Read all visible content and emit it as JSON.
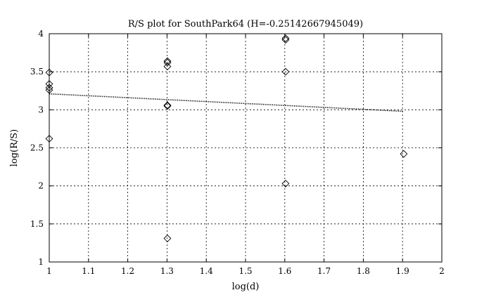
{
  "chart_data": {
    "type": "scatter",
    "title": "R/S plot for SouthPark64 (H=-0.25142667945049)",
    "xlabel": "log(d)",
    "ylabel": "log(R/S)",
    "xlim": [
      1,
      2
    ],
    "ylim": [
      1,
      4
    ],
    "grid": true,
    "x_ticks": [
      1,
      1.1,
      1.2,
      1.3,
      1.4,
      1.5,
      1.6,
      1.7,
      1.8,
      1.9,
      2
    ],
    "x_tick_labels": [
      "1",
      "1.1",
      "1.2",
      "1.3",
      "1.4",
      "1.5",
      "1.6",
      "1.7",
      "1.8",
      "1.9",
      "2"
    ],
    "y_ticks": [
      1,
      1.5,
      2,
      2.5,
      3,
      3.5,
      4
    ],
    "y_tick_labels": [
      "1",
      "1.5",
      "2",
      "2.5",
      "3",
      "3.5",
      "4"
    ],
    "series": [
      {
        "marker": "diamond",
        "color": "#000000",
        "points": [
          {
            "x": 1.0,
            "y": 3.49
          },
          {
            "x": 1.0,
            "y": 3.34
          },
          {
            "x": 1.0,
            "y": 3.29
          },
          {
            "x": 1.0,
            "y": 3.26
          },
          {
            "x": 1.0,
            "y": 2.62
          },
          {
            "x": 1.301,
            "y": 3.64
          },
          {
            "x": 1.301,
            "y": 3.62
          },
          {
            "x": 1.301,
            "y": 3.57
          },
          {
            "x": 1.301,
            "y": 3.06
          },
          {
            "x": 1.301,
            "y": 3.05
          },
          {
            "x": 1.301,
            "y": 1.31
          },
          {
            "x": 1.602,
            "y": 3.94
          },
          {
            "x": 1.602,
            "y": 3.92
          },
          {
            "x": 1.602,
            "y": 3.5
          },
          {
            "x": 1.602,
            "y": 2.03
          },
          {
            "x": 1.903,
            "y": 2.42
          }
        ]
      }
    ],
    "fit_line": {
      "style": "dotted",
      "color": "#000000",
      "x": [
        1.0,
        1.903
      ],
      "y": [
        3.21,
        2.98
      ]
    }
  }
}
